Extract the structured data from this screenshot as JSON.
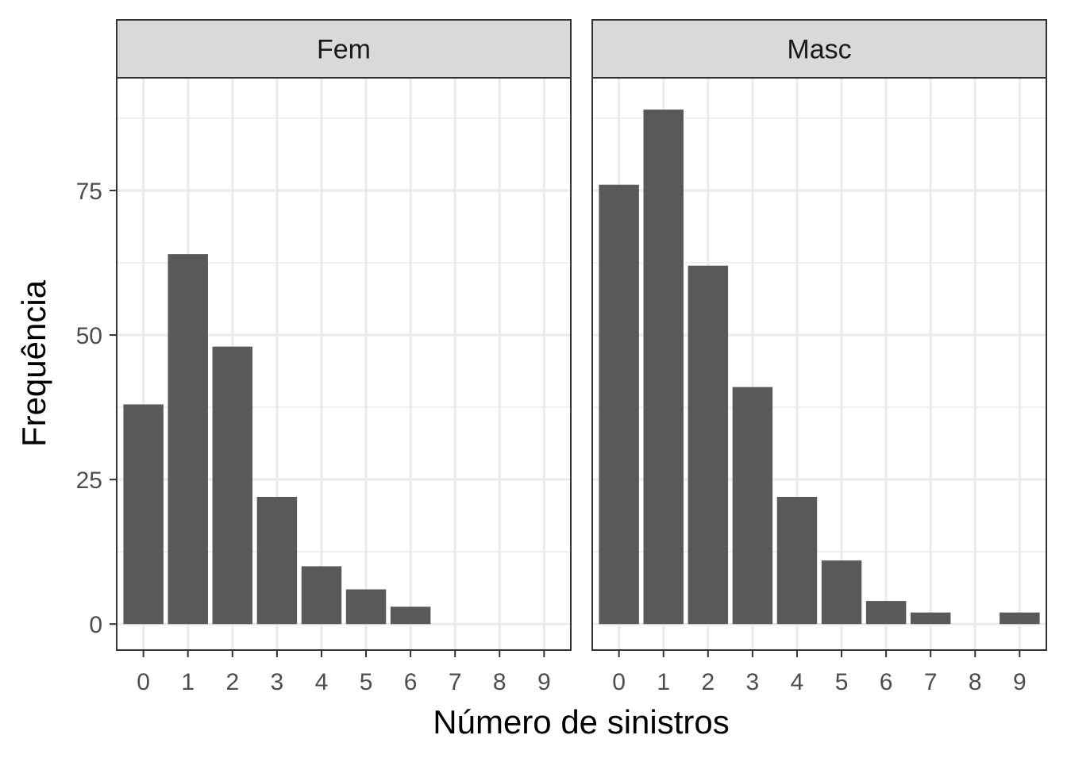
{
  "chart_data": {
    "type": "bar",
    "xlabel": "Número de sinistros",
    "ylabel": "Frequência",
    "ylim": [
      -4.5,
      94.5
    ],
    "yticks": [
      0,
      25,
      50,
      75
    ],
    "categories": [
      "0",
      "1",
      "2",
      "3",
      "4",
      "5",
      "6",
      "7",
      "8",
      "9"
    ],
    "grid": true,
    "facets": [
      {
        "label": "Fem",
        "values": [
          38,
          64,
          48,
          22,
          10,
          6,
          3,
          0,
          0,
          0
        ]
      },
      {
        "label": "Masc",
        "values": [
          76,
          89,
          62,
          41,
          22,
          11,
          4,
          2,
          0,
          2
        ]
      }
    ],
    "colors": {
      "bar": "#595959",
      "grid": "#ebebeb",
      "strip_bg": "#d9d9d9",
      "border": "#333333"
    }
  }
}
